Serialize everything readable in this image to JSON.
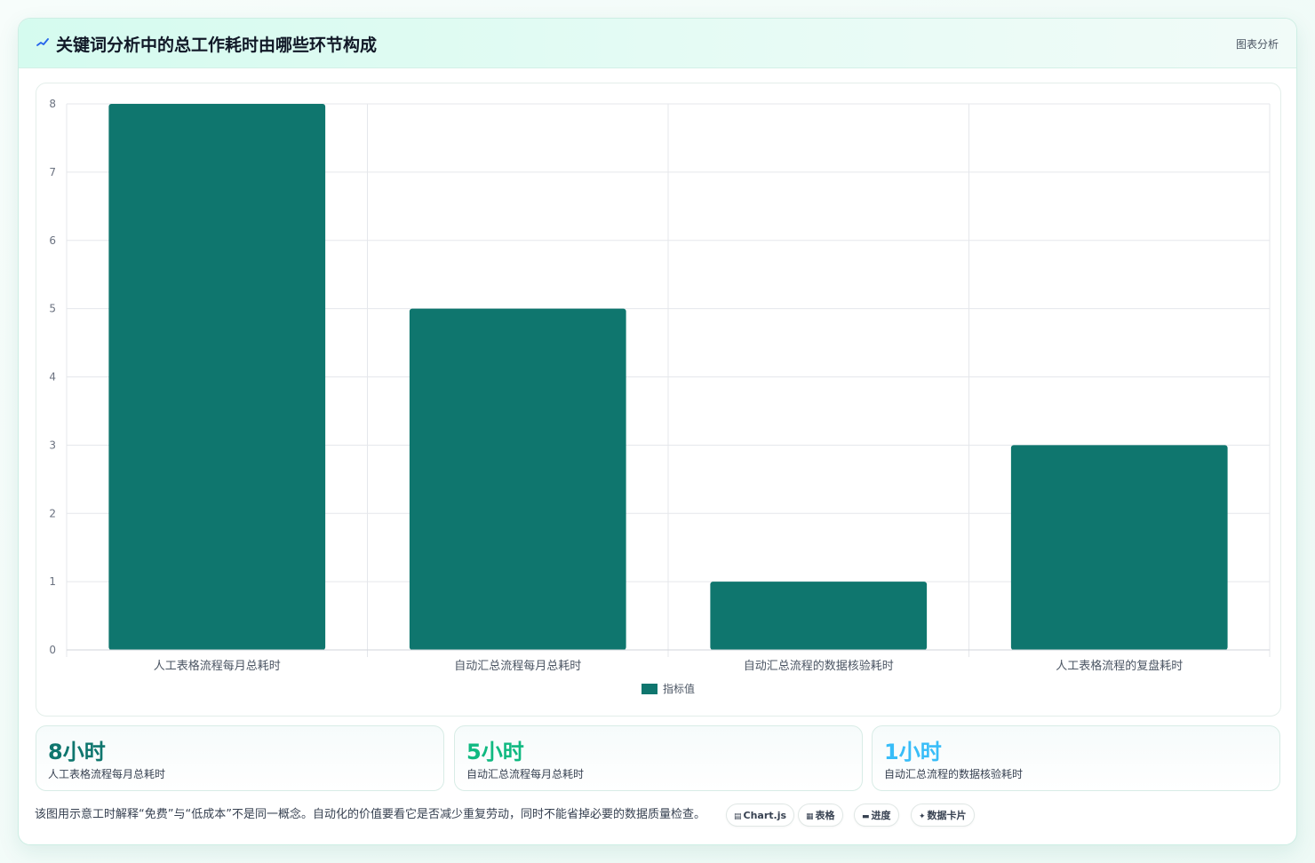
{
  "header": {
    "icon": "sparkline-icon",
    "title": "关键词分析中的总工作耗时由哪些环节构成",
    "tag": "图表分析"
  },
  "chart_data": {
    "type": "bar",
    "categories": [
      "人工表格流程每月总耗时",
      "自动汇总流程每月总耗时",
      "自动汇总流程的数据核验耗时",
      "人工表格流程的复盘耗时"
    ],
    "series": [
      {
        "name": "指标值",
        "values": [
          8,
          5,
          1,
          3
        ],
        "color": "#0f766e"
      }
    ],
    "ylim": [
      0,
      8
    ],
    "yticks": [
      0,
      1,
      2,
      3,
      4,
      5,
      6,
      7,
      8
    ],
    "grid": true,
    "legend": "bottom"
  },
  "stats": [
    {
      "value": "8小时",
      "label": "人工表格流程每月总耗时",
      "color": "#0f766e"
    },
    {
      "value": "5小时",
      "label": "自动汇总流程每月总耗时",
      "color": "#10b981"
    },
    {
      "value": "1小时",
      "label": "自动汇总流程的数据核验耗时",
      "color": "#38bdf8"
    }
  ],
  "footnote": "该图用示意工时解释“免费”与“低成本”不是同一概念。自动化的价值要看它是否减少重复劳动，同时不能省掉必要的数据质量检查。",
  "chips": [
    {
      "icon": "▤",
      "label": "Chart.js"
    },
    {
      "icon": "▦",
      "label": "表格"
    },
    {
      "icon": "▬",
      "label": "进度"
    },
    {
      "icon": "✦",
      "label": "数据卡片"
    }
  ],
  "colors": {
    "bar": "#0f766e",
    "grid": "#e5e7eb",
    "axis_text": "#6b7280"
  }
}
